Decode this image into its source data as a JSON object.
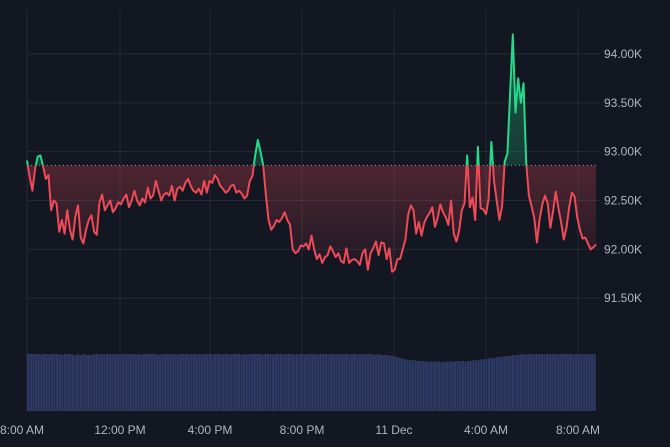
{
  "chart_data": {
    "type": "area",
    "title": "",
    "xlabel": "",
    "ylabel": "",
    "baseline": 92860,
    "ylim": [
      91000,
      94450
    ],
    "x_ticks": [
      "8:00 AM",
      "12:00 PM",
      "4:00 PM",
      "8:00 PM",
      "11 Dec",
      "4:00 AM",
      "8:00 AM"
    ],
    "y_ticks": [
      "94.00K",
      "93.50K",
      "93.00K",
      "92.50K",
      "92.00K",
      "91.50K"
    ],
    "y_tick_values": [
      94000,
      93500,
      93000,
      92500,
      92000,
      91500
    ],
    "colors": {
      "above": "#26d98a",
      "below": "#ef4a57",
      "volume": "#2e3a63",
      "grid": "#242935",
      "background": "#131722"
    },
    "series": [
      {
        "values": [
          92910,
          92740,
          92600,
          92820,
          92950,
          92960,
          92850,
          92720,
          92760,
          92400,
          92500,
          92470,
          92180,
          92300,
          92160,
          92400,
          92200,
          92100,
          92330,
          92450,
          92120,
          92060,
          92200,
          92300,
          92350,
          92180,
          92150,
          92480,
          92560,
          92400,
          92450,
          92500,
          92380,
          92420,
          92480,
          92460,
          92520,
          92560,
          92430,
          92500,
          92600,
          92500,
          92450,
          92520,
          92480,
          92630,
          92520,
          92550,
          92700,
          92600,
          92500,
          92560,
          92580,
          92550,
          92650,
          92500,
          92620,
          92640,
          92600,
          92680,
          92720,
          92650,
          92600,
          92580,
          92620,
          92560,
          92700,
          92580,
          92700,
          92680,
          92760,
          92720,
          92650,
          92620,
          92580,
          92600,
          92650,
          92660,
          92580,
          92600,
          92570,
          92520,
          92550,
          92700,
          92750,
          92960,
          93120,
          93000,
          92860,
          92560,
          92300,
          92200,
          92240,
          92300,
          92280,
          92320,
          92380,
          92300,
          92250,
          92000,
          91960,
          91980,
          92040,
          92030,
          92060,
          92000,
          92140,
          92000,
          91900,
          91950,
          91860,
          91920,
          91940,
          92030,
          91980,
          91920,
          91960,
          91880,
          91860,
          92010,
          91860,
          91890,
          91900,
          91880,
          91840,
          91960,
          92000,
          91790,
          91960,
          92010,
          92080,
          91940,
          92070,
          92060,
          91900,
          92010,
          91770,
          91790,
          91900,
          91900,
          92000,
          92100,
          92350,
          92450,
          92400,
          92160,
          92280,
          92140,
          92270,
          92330,
          92370,
          92430,
          92230,
          92320,
          92460,
          92380,
          92330,
          92250,
          92500,
          92160,
          92080,
          92190,
          92400,
          92470,
          92960,
          92430,
          92530,
          92300,
          93050,
          92420,
          92410,
          92360,
          92520,
          93100,
          92700,
          92500,
          92300,
          92440,
          92900,
          92980,
          93600,
          94200,
          93400,
          93750,
          93500,
          93700,
          92880,
          92550,
          92440,
          92320,
          92070,
          92310,
          92460,
          92550,
          92470,
          92220,
          92390,
          92590,
          92420,
          92280,
          92100,
          92220,
          92430,
          92580,
          92540,
          92330,
          92200,
          92110,
          92120,
          92060,
          92000,
          92020,
          92050
        ]
      }
    ],
    "volume": [
      0.9,
      0.9,
      0.9,
      0.9,
      0.9,
      0.89,
      0.9,
      0.9,
      0.89,
      0.9,
      0.9,
      0.9,
      0.89,
      0.89,
      0.9,
      0.9,
      0.9,
      0.89,
      0.88,
      0.9,
      0.88,
      0.9,
      0.89,
      0.89,
      0.88,
      0.9,
      0.9,
      0.89,
      0.9,
      0.89,
      0.9,
      0.9,
      0.9,
      0.89,
      0.9,
      0.89,
      0.9,
      0.9,
      0.9,
      0.9,
      0.9,
      0.89,
      0.9,
      0.89,
      0.9,
      0.9,
      0.9,
      0.9,
      0.9,
      0.89,
      0.89,
      0.9,
      0.9,
      0.9,
      0.9,
      0.9,
      0.89,
      0.89,
      0.9,
      0.9,
      0.9,
      0.89,
      0.9,
      0.9,
      0.89,
      0.9,
      0.89,
      0.9,
      0.9,
      0.9,
      0.89,
      0.9,
      0.9,
      0.9,
      0.89,
      0.9,
      0.9,
      0.89,
      0.9,
      0.9,
      0.9,
      0.89,
      0.9,
      0.89,
      0.9,
      0.9,
      0.9,
      0.9,
      0.9,
      0.89,
      0.9,
      0.9,
      0.9,
      0.89,
      0.9,
      0.9,
      0.9,
      0.89,
      0.9,
      0.9,
      0.9,
      0.89,
      0.9,
      0.9,
      0.9,
      0.89,
      0.9,
      0.9,
      0.9,
      0.9,
      0.89,
      0.9,
      0.9,
      0.9,
      0.89,
      0.9,
      0.9,
      0.9,
      0.89,
      0.9,
      0.9,
      0.9,
      0.89,
      0.9,
      0.9,
      0.89,
      0.9,
      0.9,
      0.89,
      0.9,
      0.9,
      0.89,
      0.89,
      0.9,
      0.89,
      0.88,
      0.89,
      0.88,
      0.87,
      0.86,
      0.85,
      0.84,
      0.83,
      0.82,
      0.81,
      0.81,
      0.8,
      0.8,
      0.79,
      0.79,
      0.79,
      0.78,
      0.78,
      0.78,
      0.78,
      0.78,
      0.78,
      0.77,
      0.78,
      0.78,
      0.78,
      0.78,
      0.78,
      0.79,
      0.78,
      0.79,
      0.78,
      0.79,
      0.79,
      0.8,
      0.8,
      0.81,
      0.81,
      0.82,
      0.82,
      0.83,
      0.83,
      0.84,
      0.85,
      0.85,
      0.86,
      0.86,
      0.87,
      0.87,
      0.88,
      0.88,
      0.89,
      0.89,
      0.9,
      0.89,
      0.9,
      0.9,
      0.89,
      0.9,
      0.9,
      0.9,
      0.89,
      0.9,
      0.9,
      0.9,
      0.9,
      0.89,
      0.9,
      0.9,
      0.9,
      0.9,
      0.9,
      0.89,
      0.9,
      0.9,
      0.9,
      0.9,
      0.89,
      0.9,
      0.9,
      0.9
    ]
  }
}
